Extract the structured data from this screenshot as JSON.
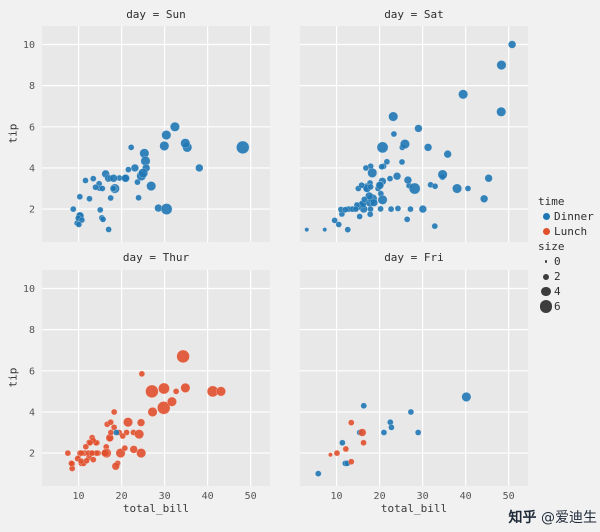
{
  "watermark": {
    "brand": "知乎",
    "user": "@爱迪生"
  },
  "chart_data": {
    "type": "scatter",
    "xlabel": "total_bill",
    "ylabel": "tip",
    "x_ticks": [
      10,
      20,
      30,
      40,
      50
    ],
    "y_ticks": [
      2,
      4,
      6,
      8,
      10
    ],
    "xlim": [
      1.5,
      54.5
    ],
    "ylim": [
      0.4,
      10.9
    ],
    "grid": true,
    "panel_bg": "#e8e8e8",
    "grid_color": "#ffffff",
    "colors": {
      "Dinner": "#1f77b4",
      "Lunch": "#e0502d"
    },
    "legend": {
      "position": "right",
      "hue_title": "time",
      "hue_items": [
        {
          "label": "Dinner",
          "color": "#1f77b4"
        },
        {
          "label": "Lunch",
          "color": "#e0502d"
        }
      ],
      "size_title": "size",
      "size_labels": [
        "0",
        "2",
        "4",
        "6"
      ],
      "size_values": [
        0,
        2,
        4,
        6
      ]
    },
    "facets": [
      {
        "title": "day = Sun",
        "default_time": "Dinner",
        "points": [
          [
            16.99,
            1.01,
            2
          ],
          [
            10.34,
            1.66,
            3
          ],
          [
            21.01,
            3.5,
            3
          ],
          [
            23.68,
            3.31,
            2
          ],
          [
            24.59,
            3.61,
            4
          ],
          [
            25.29,
            4.71,
            4
          ],
          [
            8.77,
            2.0,
            2
          ],
          [
            26.88,
            3.12,
            4
          ],
          [
            15.04,
            1.96,
            2
          ],
          [
            14.78,
            3.23,
            2
          ],
          [
            10.27,
            1.71,
            2
          ],
          [
            35.26,
            5.0,
            4
          ],
          [
            15.42,
            1.57,
            2
          ],
          [
            18.43,
            3.0,
            4
          ],
          [
            14.83,
            3.02,
            2
          ],
          [
            21.58,
            3.92,
            2
          ],
          [
            10.33,
            1.67,
            3
          ],
          [
            16.29,
            3.71,
            3
          ],
          [
            16.97,
            3.5,
            3
          ],
          [
            17.46,
            2.54,
            2
          ],
          [
            13.94,
            3.06,
            2
          ],
          [
            9.68,
            1.32,
            2
          ],
          [
            30.4,
            5.6,
            4
          ],
          [
            18.29,
            3.0,
            2
          ],
          [
            22.23,
            5.0,
            2
          ],
          [
            32.4,
            6.0,
            4
          ],
          [
            28.55,
            2.05,
            3
          ],
          [
            18.04,
            3.0,
            2
          ],
          [
            12.54,
            2.5,
            2
          ],
          [
            10.29,
            2.6,
            2
          ],
          [
            34.81,
            5.2,
            4
          ],
          [
            9.94,
            1.56,
            2
          ],
          [
            25.56,
            4.34,
            4
          ],
          [
            19.49,
            3.51,
            2
          ],
          [
            38.07,
            4.0,
            3
          ],
          [
            23.95,
            2.55,
            2
          ],
          [
            25.71,
            4.0,
            3
          ],
          [
            17.31,
            3.5,
            2
          ],
          [
            29.93,
            5.07,
            4
          ],
          [
            48.17,
            5.0,
            6
          ],
          [
            25.0,
            3.75,
            4
          ],
          [
            13.42,
            3.48,
            2
          ],
          [
            20.9,
            3.5,
            3
          ],
          [
            30.46,
            2.0,
            5
          ],
          [
            18.15,
            3.5,
            3
          ],
          [
            23.1,
            4.0,
            3
          ],
          [
            15.69,
            1.5,
            2
          ],
          [
            11.61,
            3.39,
            2
          ],
          [
            10.77,
            1.47,
            2
          ],
          [
            15.53,
            3.0,
            2
          ],
          [
            10.07,
            1.25,
            2
          ]
        ]
      },
      {
        "title": "day = Sat",
        "default_time": "Dinner",
        "points": [
          [
            20.65,
            3.35,
            3
          ],
          [
            17.92,
            4.08,
            2
          ],
          [
            20.29,
            2.75,
            2
          ],
          [
            15.77,
            2.23,
            2
          ],
          [
            39.42,
            7.58,
            4
          ],
          [
            19.82,
            3.18,
            2
          ],
          [
            17.81,
            2.34,
            4
          ],
          [
            13.37,
            2.0,
            2
          ],
          [
            12.69,
            2.0,
            2
          ],
          [
            21.7,
            4.3,
            2
          ],
          [
            19.65,
            3.0,
            2
          ],
          [
            9.55,
            1.45,
            2
          ],
          [
            18.35,
            2.5,
            4
          ],
          [
            15.06,
            3.0,
            2
          ],
          [
            20.69,
            2.45,
            4
          ],
          [
            17.78,
            3.27,
            2
          ],
          [
            24.06,
            3.6,
            3
          ],
          [
            16.31,
            2.0,
            3
          ],
          [
            16.93,
            3.07,
            3
          ],
          [
            18.69,
            2.31,
            3
          ],
          [
            31.27,
            5.0,
            3
          ],
          [
            16.04,
            2.24,
            3
          ],
          [
            38.01,
            3.0,
            4
          ],
          [
            26.41,
            1.5,
            2
          ],
          [
            11.24,
            1.76,
            2
          ],
          [
            48.27,
            6.73,
            4
          ],
          [
            20.29,
            3.21,
            2
          ],
          [
            13.81,
            2.0,
            2
          ],
          [
            11.02,
            1.98,
            2
          ],
          [
            18.29,
            3.76,
            4
          ],
          [
            17.59,
            2.64,
            3
          ],
          [
            20.08,
            3.15,
            3
          ],
          [
            16.45,
            2.47,
            2
          ],
          [
            3.07,
            1.0,
            1
          ],
          [
            20.23,
            2.01,
            2
          ],
          [
            15.01,
            2.09,
            2
          ],
          [
            12.02,
            1.97,
            2
          ],
          [
            17.07,
            3.0,
            3
          ],
          [
            26.86,
            3.14,
            2
          ],
          [
            25.28,
            5.0,
            2
          ],
          [
            14.73,
            2.2,
            2
          ],
          [
            10.51,
            1.25,
            2
          ],
          [
            17.92,
            3.08,
            2
          ],
          [
            44.3,
            2.5,
            3
          ],
          [
            22.42,
            3.48,
            2
          ],
          [
            20.92,
            4.08,
            2
          ],
          [
            15.36,
            1.64,
            2
          ],
          [
            20.49,
            4.06,
            2
          ],
          [
            25.21,
            4.29,
            2
          ],
          [
            7.25,
            1.0,
            1
          ],
          [
            50.81,
            10.0,
            3
          ],
          [
            15.81,
            3.16,
            2
          ],
          [
            31.85,
            3.18,
            2
          ],
          [
            16.82,
            4.0,
            2
          ],
          [
            32.9,
            3.11,
            2
          ],
          [
            17.89,
            2.0,
            2
          ],
          [
            14.48,
            2.0,
            2
          ],
          [
            34.63,
            3.55,
            2
          ],
          [
            34.65,
            3.68,
            4
          ],
          [
            23.33,
            5.65,
            2
          ],
          [
            45.35,
            3.5,
            3
          ],
          [
            23.17,
            6.5,
            4
          ],
          [
            40.55,
            3.0,
            2
          ],
          [
            20.69,
            5.0,
            5
          ],
          [
            35.83,
            4.67,
            3
          ],
          [
            29.03,
            5.92,
            3
          ],
          [
            27.18,
            2.0,
            2
          ],
          [
            22.67,
            2.0,
            2
          ],
          [
            17.82,
            1.75,
            2
          ],
          [
            32.83,
            1.17,
            2
          ],
          [
            48.33,
            9.0,
            4
          ],
          [
            25.89,
            5.16,
            4
          ],
          [
            28.15,
            3.0,
            5
          ],
          [
            12.6,
            1.0,
            2
          ],
          [
            24.27,
            2.03,
            2
          ],
          [
            30.06,
            2.0,
            3
          ],
          [
            26.59,
            3.41,
            3
          ]
        ]
      },
      {
        "title": "day = Thur",
        "default_time": "Lunch",
        "points": [
          [
            27.2,
            4.0,
            4
          ],
          [
            22.76,
            3.0,
            2
          ],
          [
            17.29,
            2.71,
            2
          ],
          [
            19.44,
            3.0,
            2
          ],
          [
            16.66,
            3.4,
            2
          ],
          [
            10.07,
            1.83,
            1
          ],
          [
            32.68,
            5.0,
            2
          ],
          [
            15.98,
            2.03,
            2
          ],
          [
            34.83,
            5.17,
            4
          ],
          [
            13.03,
            2.0,
            2
          ],
          [
            18.28,
            4.0,
            2
          ],
          [
            24.71,
            5.85,
            2
          ],
          [
            21.16,
            3.0,
            2
          ],
          [
            10.65,
            1.5,
            2
          ],
          [
            12.43,
            1.8,
            2
          ],
          [
            24.08,
            2.92,
            4
          ],
          [
            11.69,
            2.31,
            2
          ],
          [
            13.42,
            1.68,
            2
          ],
          [
            14.26,
            2.5,
            2
          ],
          [
            15.95,
            2.0,
            2
          ],
          [
            12.48,
            2.52,
            2
          ],
          [
            29.8,
            4.2,
            6
          ],
          [
            8.52,
            1.48,
            2
          ],
          [
            14.52,
            2.0,
            2
          ],
          [
            11.38,
            2.0,
            2
          ],
          [
            22.82,
            2.18,
            3
          ],
          [
            19.08,
            1.5,
            2
          ],
          [
            20.27,
            2.83,
            2
          ],
          [
            11.17,
            1.5,
            2
          ],
          [
            12.26,
            2.0,
            2
          ],
          [
            18.26,
            3.25,
            2
          ],
          [
            8.51,
            1.25,
            2
          ],
          [
            10.33,
            2.0,
            2
          ],
          [
            14.15,
            2.0,
            2
          ],
          [
            16.0,
            2.0,
            2
          ],
          [
            13.16,
            2.75,
            2
          ],
          [
            17.47,
            3.5,
            2
          ],
          [
            34.3,
            6.7,
            6
          ],
          [
            41.19,
            5.0,
            5
          ],
          [
            43.11,
            5.0,
            4
          ],
          [
            27.05,
            5.0,
            6
          ],
          [
            16.43,
            2.3,
            2
          ],
          [
            8.35,
            1.5,
            2
          ],
          [
            18.64,
            1.36,
            3
          ],
          [
            11.87,
            1.63,
            2
          ],
          [
            9.78,
            1.73,
            2
          ],
          [
            7.51,
            2.0,
            2
          ],
          [
            14.07,
            2.5,
            2
          ],
          [
            13.13,
            2.0,
            2
          ],
          [
            17.26,
            2.74,
            3
          ],
          [
            24.55,
            2.0,
            4
          ],
          [
            19.77,
            2.0,
            4
          ],
          [
            29.85,
            5.14,
            5
          ],
          [
            13.39,
            2.61,
            2
          ],
          [
            16.49,
            2.0,
            4
          ],
          [
            21.5,
            3.5,
            4
          ],
          [
            12.66,
            2.5,
            2
          ],
          [
            16.21,
            2.0,
            3
          ],
          [
            17.51,
            3.0,
            2
          ],
          [
            24.52,
            3.48,
            3
          ],
          [
            20.76,
            2.24,
            2
          ],
          [
            31.71,
            4.5,
            4
          ],
          [
            10.59,
            1.61,
            2
          ],
          [
            10.63,
            2.0,
            2
          ],
          [
            18.78,
            3.0,
            2,
            "Dinner"
          ]
        ]
      },
      {
        "title": "day = Fri",
        "default_time": "Dinner",
        "points": [
          [
            28.97,
            3.0,
            2
          ],
          [
            22.49,
            3.5,
            2
          ],
          [
            5.75,
            1.0,
            2
          ],
          [
            16.32,
            4.3,
            2
          ],
          [
            22.75,
            3.25,
            2
          ],
          [
            40.17,
            4.73,
            4
          ],
          [
            27.28,
            4.0,
            2
          ],
          [
            12.03,
            1.5,
            2
          ],
          [
            21.01,
            3.0,
            2
          ],
          [
            12.46,
            1.5,
            2
          ],
          [
            11.35,
            2.5,
            2
          ],
          [
            15.38,
            3.0,
            2
          ],
          [
            12.16,
            2.2,
            2,
            "Lunch"
          ],
          [
            13.42,
            3.48,
            2,
            "Lunch"
          ],
          [
            8.58,
            1.92,
            1,
            "Lunch"
          ],
          [
            15.98,
            3.0,
            3,
            "Lunch"
          ],
          [
            13.42,
            1.58,
            2,
            "Lunch"
          ],
          [
            16.27,
            2.5,
            2,
            "Lunch"
          ],
          [
            10.09,
            2.0,
            2,
            "Lunch"
          ]
        ]
      }
    ]
  }
}
